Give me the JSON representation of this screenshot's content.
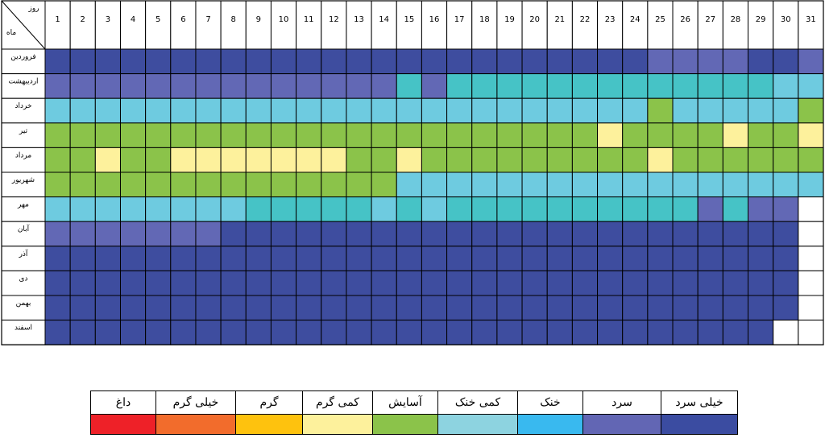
{
  "chart_data": {
    "type": "heatmap",
    "corner_label_day": "روز",
    "corner_label_month": "ماه",
    "days": [
      "1",
      "2",
      "3",
      "4",
      "5",
      "6",
      "7",
      "8",
      "9",
      "10",
      "11",
      "12",
      "13",
      "14",
      "15",
      "16",
      "17",
      "18",
      "19",
      "20",
      "21",
      "22",
      "23",
      "24",
      "25",
      "26",
      "27",
      "28",
      "29",
      "30",
      "31"
    ],
    "months": [
      "فروردین",
      "اردیبهشت",
      "خرداد",
      "تیر",
      "مرداد",
      "شهریور",
      "مهر",
      "آبان",
      "آذر",
      "دی",
      "بهمن",
      "اسفند"
    ],
    "categories": [
      {
        "key": "hot",
        "label": "داغ",
        "color": "#ee2128"
      },
      {
        "key": "very_warm",
        "label": "خیلی گرم",
        "color": "#f26c2c"
      },
      {
        "key": "warm",
        "label": "گرم",
        "color": "#fec20e"
      },
      {
        "key": "slightly_warm",
        "label": "کمی گرم",
        "color": "#fdf19c"
      },
      {
        "key": "comfortable",
        "label": "آسایش",
        "color": "#8bc34a"
      },
      {
        "key": "slightly_cool",
        "label": "کمی خنک",
        "color": "#8dd3e0"
      },
      {
        "key": "cool",
        "label": "خنک",
        "color": "#39b9ef"
      },
      {
        "key": "cold",
        "label": "سرد",
        "color": "#6266b4"
      },
      {
        "key": "very_cold",
        "label": "خیلی سرد",
        "color": "#3b4ca1"
      }
    ],
    "cell_colors": {
      "very_cold": "#3e4d9f",
      "cold": "#6268b5",
      "slightly_cool_cyan": "#46c3c6",
      "slightly_cool": "#6ecbe0",
      "comfortable": "#8bc34a",
      "slightly_warm": "#fdf19c",
      "empty": "#ffffff"
    },
    "values": [
      [
        "very_cold",
        "very_cold",
        "very_cold",
        "very_cold",
        "very_cold",
        "very_cold",
        "very_cold",
        "very_cold",
        "very_cold",
        "very_cold",
        "very_cold",
        "very_cold",
        "very_cold",
        "very_cold",
        "very_cold",
        "very_cold",
        "very_cold",
        "very_cold",
        "very_cold",
        "very_cold",
        "very_cold",
        "very_cold",
        "very_cold",
        "very_cold",
        "cold",
        "cold",
        "cold",
        "cold",
        "very_cold",
        "very_cold",
        "cold"
      ],
      [
        "cold",
        "cold",
        "cold",
        "cold",
        "cold",
        "cold",
        "cold",
        "cold",
        "cold",
        "cold",
        "cold",
        "cold",
        "cold",
        "cold",
        "slightly_cool_cyan",
        "cold",
        "slightly_cool_cyan",
        "slightly_cool_cyan",
        "slightly_cool_cyan",
        "slightly_cool_cyan",
        "slightly_cool_cyan",
        "slightly_cool_cyan",
        "slightly_cool_cyan",
        "slightly_cool_cyan",
        "slightly_cool_cyan",
        "slightly_cool_cyan",
        "slightly_cool_cyan",
        "slightly_cool_cyan",
        "slightly_cool_cyan",
        "slightly_cool",
        "slightly_cool"
      ],
      [
        "slightly_cool",
        "slightly_cool",
        "slightly_cool",
        "slightly_cool",
        "slightly_cool",
        "slightly_cool",
        "slightly_cool",
        "slightly_cool",
        "slightly_cool",
        "slightly_cool",
        "slightly_cool",
        "slightly_cool",
        "slightly_cool",
        "slightly_cool",
        "slightly_cool",
        "slightly_cool",
        "slightly_cool",
        "slightly_cool",
        "slightly_cool",
        "slightly_cool",
        "slightly_cool",
        "slightly_cool",
        "slightly_cool",
        "slightly_cool",
        "comfortable",
        "slightly_cool",
        "slightly_cool",
        "slightly_cool",
        "slightly_cool",
        "slightly_cool",
        "comfortable"
      ],
      [
        "comfortable",
        "comfortable",
        "comfortable",
        "comfortable",
        "comfortable",
        "comfortable",
        "comfortable",
        "comfortable",
        "comfortable",
        "comfortable",
        "comfortable",
        "comfortable",
        "comfortable",
        "comfortable",
        "comfortable",
        "comfortable",
        "comfortable",
        "comfortable",
        "comfortable",
        "comfortable",
        "comfortable",
        "comfortable",
        "slightly_warm",
        "comfortable",
        "comfortable",
        "comfortable",
        "comfortable",
        "slightly_warm",
        "comfortable",
        "comfortable",
        "slightly_warm"
      ],
      [
        "comfortable",
        "comfortable",
        "slightly_warm",
        "comfortable",
        "comfortable",
        "slightly_warm",
        "slightly_warm",
        "slightly_warm",
        "slightly_warm",
        "slightly_warm",
        "slightly_warm",
        "slightly_warm",
        "comfortable",
        "comfortable",
        "slightly_warm",
        "comfortable",
        "comfortable",
        "comfortable",
        "comfortable",
        "comfortable",
        "comfortable",
        "comfortable",
        "comfortable",
        "comfortable",
        "slightly_warm",
        "comfortable",
        "comfortable",
        "comfortable",
        "comfortable",
        "comfortable",
        "comfortable"
      ],
      [
        "comfortable",
        "comfortable",
        "comfortable",
        "comfortable",
        "comfortable",
        "comfortable",
        "comfortable",
        "comfortable",
        "comfortable",
        "comfortable",
        "comfortable",
        "comfortable",
        "comfortable",
        "comfortable",
        "slightly_cool",
        "slightly_cool",
        "slightly_cool",
        "slightly_cool",
        "slightly_cool",
        "slightly_cool",
        "slightly_cool",
        "slightly_cool",
        "slightly_cool",
        "slightly_cool",
        "slightly_cool",
        "slightly_cool",
        "slightly_cool",
        "slightly_cool",
        "slightly_cool",
        "slightly_cool",
        "slightly_cool"
      ],
      [
        "slightly_cool",
        "slightly_cool",
        "slightly_cool",
        "slightly_cool",
        "slightly_cool",
        "slightly_cool",
        "slightly_cool",
        "slightly_cool",
        "slightly_cool_cyan",
        "slightly_cool_cyan",
        "slightly_cool_cyan",
        "slightly_cool_cyan",
        "slightly_cool_cyan",
        "slightly_cool",
        "slightly_cool_cyan",
        "slightly_cool",
        "slightly_cool_cyan",
        "slightly_cool_cyan",
        "slightly_cool_cyan",
        "slightly_cool_cyan",
        "slightly_cool_cyan",
        "slightly_cool_cyan",
        "slightly_cool_cyan",
        "slightly_cool_cyan",
        "slightly_cool_cyan",
        "slightly_cool_cyan",
        "cold",
        "slightly_cool_cyan",
        "cold",
        "cold",
        "empty"
      ],
      [
        "cold",
        "cold",
        "cold",
        "cold",
        "cold",
        "cold",
        "cold",
        "very_cold",
        "very_cold",
        "very_cold",
        "very_cold",
        "very_cold",
        "very_cold",
        "very_cold",
        "very_cold",
        "very_cold",
        "very_cold",
        "very_cold",
        "very_cold",
        "very_cold",
        "very_cold",
        "very_cold",
        "very_cold",
        "very_cold",
        "very_cold",
        "very_cold",
        "very_cold",
        "very_cold",
        "very_cold",
        "very_cold",
        "empty"
      ],
      [
        "very_cold",
        "very_cold",
        "very_cold",
        "very_cold",
        "very_cold",
        "very_cold",
        "very_cold",
        "very_cold",
        "very_cold",
        "very_cold",
        "very_cold",
        "very_cold",
        "very_cold",
        "very_cold",
        "very_cold",
        "very_cold",
        "very_cold",
        "very_cold",
        "very_cold",
        "very_cold",
        "very_cold",
        "very_cold",
        "very_cold",
        "very_cold",
        "very_cold",
        "very_cold",
        "very_cold",
        "very_cold",
        "very_cold",
        "very_cold",
        "empty"
      ],
      [
        "very_cold",
        "very_cold",
        "very_cold",
        "very_cold",
        "very_cold",
        "very_cold",
        "very_cold",
        "very_cold",
        "very_cold",
        "very_cold",
        "very_cold",
        "very_cold",
        "very_cold",
        "very_cold",
        "very_cold",
        "very_cold",
        "very_cold",
        "very_cold",
        "very_cold",
        "very_cold",
        "very_cold",
        "very_cold",
        "very_cold",
        "very_cold",
        "very_cold",
        "very_cold",
        "very_cold",
        "very_cold",
        "very_cold",
        "very_cold",
        "empty"
      ],
      [
        "very_cold",
        "very_cold",
        "very_cold",
        "very_cold",
        "very_cold",
        "very_cold",
        "very_cold",
        "very_cold",
        "very_cold",
        "very_cold",
        "very_cold",
        "very_cold",
        "very_cold",
        "very_cold",
        "very_cold",
        "very_cold",
        "very_cold",
        "very_cold",
        "very_cold",
        "very_cold",
        "very_cold",
        "very_cold",
        "very_cold",
        "very_cold",
        "very_cold",
        "very_cold",
        "very_cold",
        "very_cold",
        "very_cold",
        "very_cold",
        "empty"
      ],
      [
        "very_cold",
        "very_cold",
        "very_cold",
        "very_cold",
        "very_cold",
        "very_cold",
        "very_cold",
        "very_cold",
        "very_cold",
        "very_cold",
        "very_cold",
        "very_cold",
        "very_cold",
        "very_cold",
        "very_cold",
        "very_cold",
        "very_cold",
        "very_cold",
        "very_cold",
        "very_cold",
        "very_cold",
        "very_cold",
        "very_cold",
        "very_cold",
        "very_cold",
        "very_cold",
        "very_cold",
        "very_cold",
        "very_cold",
        "empty",
        "empty"
      ]
    ]
  }
}
